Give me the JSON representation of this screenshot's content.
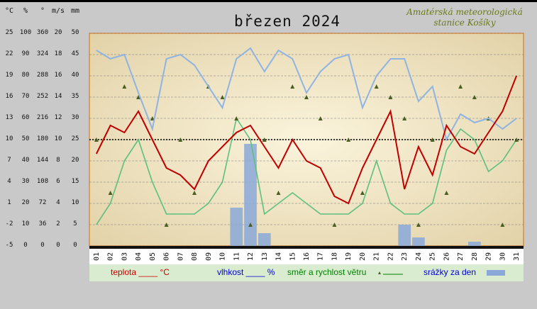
{
  "title": "březen 2024",
  "station": [
    "Amatérská meteorologická",
    "stanice Košíky"
  ],
  "units": [
    "°C",
    "%",
    "°",
    "m/s",
    "mm"
  ],
  "scales": {
    "temperature": [
      "25",
      "22",
      "19",
      "16",
      "13",
      "10",
      "7",
      "4",
      "1",
      "-2",
      "-5"
    ],
    "humidity": [
      "100",
      "90",
      "80",
      "70",
      "60",
      "50",
      "40",
      "30",
      "20",
      "10",
      "0"
    ],
    "direction": [
      "360",
      "324",
      "288",
      "252",
      "216",
      "180",
      "144",
      "108",
      "72",
      "36",
      "0"
    ],
    "speed": [
      "20",
      "18",
      "16",
      "14",
      "12",
      "10",
      "8",
      "6",
      "4",
      "2",
      "0"
    ],
    "precip": [
      "50",
      "45",
      "40",
      "35",
      "30",
      "25",
      "20",
      "15",
      "10",
      "5",
      "0"
    ]
  },
  "days": [
    "01",
    "02",
    "03",
    "04",
    "05",
    "06",
    "07",
    "08",
    "09",
    "10",
    "11",
    "12",
    "13",
    "14",
    "15",
    "16",
    "17",
    "18",
    "19",
    "20",
    "21",
    "22",
    "23",
    "24",
    "25",
    "26",
    "27",
    "28",
    "29",
    "30",
    "31"
  ],
  "legend": {
    "temperature": "teplota ____ °C",
    "humidity": "vlhkost ____ %",
    "wind": "směr a rychlost větru",
    "precip": "srážky za den"
  },
  "colors": {
    "temperature": "#c00000",
    "humidity": "#8fb4e3",
    "wind_speed": "#5cc07f",
    "wind_dir": "#4a5e22",
    "precip": "#8aa8d8",
    "legend_temp": "#cc0000",
    "legend_hum": "#0000cc",
    "legend_wind": "#008000",
    "legend_precip": "#0000cc"
  },
  "chart_data": {
    "type": "line",
    "x": [
      "01",
      "02",
      "03",
      "04",
      "05",
      "06",
      "07",
      "08",
      "09",
      "10",
      "11",
      "12",
      "13",
      "14",
      "15",
      "16",
      "17",
      "18",
      "19",
      "20",
      "21",
      "22",
      "23",
      "24",
      "25",
      "26",
      "27",
      "28",
      "29",
      "30",
      "31"
    ],
    "series": [
      {
        "name": "teplota",
        "unit": "°C",
        "values": [
          8,
          12,
          11,
          14,
          10,
          6,
          5,
          3,
          7,
          9,
          11,
          12,
          9,
          6,
          10,
          7,
          6,
          2,
          1,
          6,
          10,
          14,
          3,
          9,
          5,
          12,
          9,
          8,
          11,
          14,
          19
        ]
      },
      {
        "name": "vlhkost",
        "unit": "%",
        "values": [
          92,
          88,
          90,
          72,
          55,
          88,
          90,
          85,
          75,
          65,
          88,
          93,
          82,
          92,
          88,
          72,
          82,
          88,
          90,
          65,
          80,
          88,
          88,
          68,
          75,
          50,
          62,
          58,
          60,
          55,
          60
        ]
      },
      {
        "name": "rychlost větru",
        "unit": "m/s",
        "values": [
          2,
          4,
          8,
          10,
          6,
          3,
          3,
          3,
          4,
          6,
          12,
          10,
          3,
          4,
          5,
          4,
          3,
          3,
          3,
          4,
          8,
          4,
          3,
          3,
          4,
          9,
          11,
          10,
          7,
          8,
          10
        ]
      },
      {
        "name": "srážky za den",
        "unit": "mm",
        "values": [
          0,
          0,
          0,
          0,
          0,
          0,
          0,
          0,
          0,
          0,
          9,
          24,
          3,
          0,
          0,
          0,
          0,
          0,
          0,
          0,
          0,
          0,
          5,
          2,
          0,
          0,
          0,
          1,
          0,
          0,
          0
        ]
      }
    ],
    "ylim": [
      -5,
      25
    ],
    "reference_line": 10
  }
}
